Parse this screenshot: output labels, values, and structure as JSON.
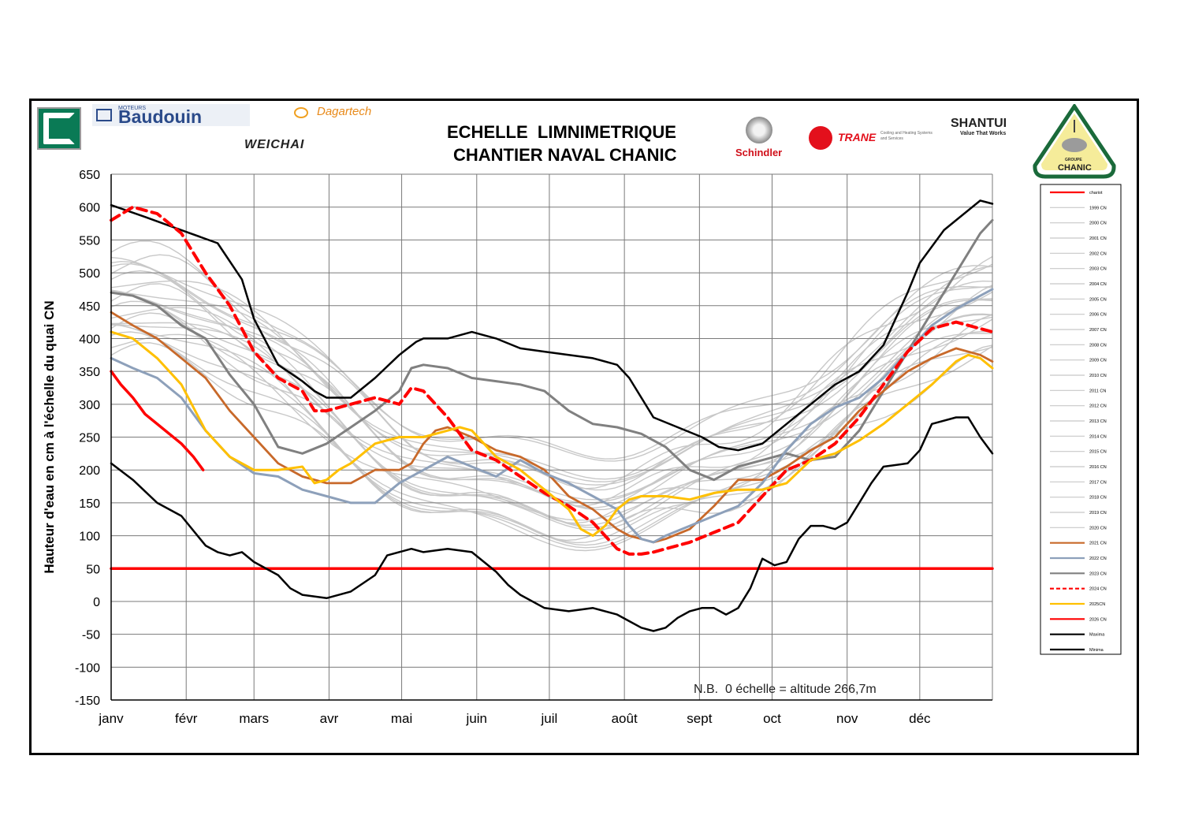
{
  "header": {
    "title_line1": "ECHELLE  LIMNIMETRIQUE",
    "title_line2": "CHANTIER NAVAL CHANIC",
    "note": "N.B.  0 échelle = altitude 266,7m"
  },
  "logos": {
    "baudouin": "Baudouin",
    "baudouin_small": "MOTEURS",
    "dagartech": "Dagartech",
    "weichai": "WEICHAI",
    "schindler": "Schindler",
    "trane": "TRANE",
    "trane_tag": "Cooling and Heating Systems and Services",
    "shantui": "SHANTUI",
    "shantui_tag": "Value That Works",
    "chanic_top": "GROUPE",
    "chanic": "CHANIC"
  },
  "colors": {
    "background_gray": "#c8c8c8",
    "red": "#ff0000",
    "orange": "#c8692a",
    "blue_gray": "#8da0ba",
    "dark_gray": "#808080",
    "yellow": "#ffc000",
    "black": "#000000"
  },
  "chart_data": {
    "type": "line",
    "title": "",
    "xlabel": "",
    "ylabel": "Hauteur d'eau en cm à l'échelle du quai CN",
    "ylim": [
      -150,
      650
    ],
    "yticks": [
      -150,
      -100,
      -50,
      0,
      50,
      100,
      150,
      200,
      250,
      300,
      350,
      400,
      450,
      500,
      550,
      600,
      650
    ],
    "month_labels": [
      "janv",
      "févr",
      "mars",
      "avr",
      "mai",
      "juin",
      "juil",
      "août",
      "sept",
      "oct",
      "nov",
      "déc"
    ],
    "xlim_days": [
      1,
      365
    ],
    "grid": true,
    "legend_position": "right",
    "legend": [
      "chariot",
      "1999 CN",
      "2000 CN",
      "2001 CN",
      "2002 CN",
      "2003 CN",
      "2004 CN",
      "2005 CN",
      "2006 CN",
      "2007 CN",
      "2008 CN",
      "2009 CN",
      "2010 CN",
      "2011 CN",
      "2012 CN",
      "2013 CN",
      "2014 CN",
      "2015 CN",
      "2016 CN",
      "2017 CN",
      "2018 CN",
      "2019 CN",
      "2020 CN",
      "2021 CN",
      "2022 CN",
      "2023 CN",
      "2024 CN",
      "2025CN",
      "2026 CN",
      "Maxima",
      "Minima"
    ],
    "series": [
      {
        "name": "chariot",
        "style": "red",
        "x": [
          1,
          365
        ],
        "y": [
          50,
          50
        ]
      },
      {
        "name": "Maxima",
        "style": "black",
        "x": [
          1,
          15,
          30,
          45,
          55,
          60,
          70,
          80,
          85,
          90,
          100,
          110,
          120,
          127,
          130,
          140,
          150,
          160,
          170,
          180,
          190,
          200,
          210,
          215,
          225,
          235,
          245,
          252,
          260,
          270,
          280,
          290,
          300,
          310,
          320,
          330,
          335,
          345,
          350,
          360,
          365
        ],
        "y": [
          603,
          585,
          565,
          545,
          490,
          430,
          360,
          335,
          320,
          310,
          310,
          340,
          375,
          395,
          400,
          400,
          410,
          400,
          385,
          380,
          375,
          370,
          360,
          340,
          280,
          265,
          250,
          235,
          230,
          240,
          270,
          300,
          330,
          350,
          390,
          470,
          515,
          565,
          580,
          610,
          605
        ]
      },
      {
        "name": "Minima",
        "style": "black",
        "x": [
          1,
          10,
          20,
          30,
          40,
          45,
          50,
          55,
          60,
          70,
          75,
          80,
          90,
          100,
          110,
          115,
          125,
          130,
          140,
          150,
          155,
          160,
          165,
          170,
          180,
          190,
          200,
          210,
          215,
          220,
          225,
          230,
          235,
          240,
          245,
          250,
          255,
          260,
          265,
          270,
          275,
          280,
          285,
          290,
          295,
          300,
          305,
          310,
          315,
          320,
          330,
          335,
          340,
          350,
          355,
          360,
          365
        ],
        "y": [
          210,
          185,
          150,
          130,
          85,
          75,
          70,
          75,
          60,
          40,
          20,
          10,
          5,
          15,
          40,
          70,
          80,
          75,
          80,
          75,
          60,
          45,
          25,
          10,
          -10,
          -15,
          -10,
          -20,
          -30,
          -40,
          -45,
          -40,
          -25,
          -15,
          -10,
          -10,
          -20,
          -10,
          20,
          65,
          55,
          60,
          95,
          115,
          115,
          110,
          120,
          150,
          180,
          205,
          210,
          230,
          270,
          280,
          280,
          250,
          225
        ]
      },
      {
        "name": "2023 CN",
        "style": "dark_gray",
        "x": [
          1,
          10,
          20,
          30,
          40,
          50,
          60,
          70,
          80,
          90,
          100,
          110,
          120,
          125,
          130,
          140,
          150,
          160,
          170,
          180,
          190,
          200,
          210,
          220,
          230,
          240,
          250,
          260,
          270,
          280,
          290,
          300,
          310,
          320,
          330,
          340,
          350,
          360,
          365
        ],
        "y": [
          470,
          465,
          450,
          420,
          400,
          345,
          300,
          235,
          225,
          240,
          265,
          290,
          320,
          355,
          360,
          355,
          340,
          335,
          330,
          320,
          290,
          270,
          265,
          255,
          235,
          200,
          185,
          205,
          215,
          225,
          215,
          220,
          260,
          320,
          380,
          440,
          500,
          560,
          580
        ]
      },
      {
        "name": "2021 CN",
        "style": "orange",
        "x": [
          1,
          10,
          20,
          30,
          40,
          50,
          60,
          70,
          80,
          90,
          100,
          110,
          120,
          125,
          130,
          135,
          140,
          150,
          160,
          170,
          180,
          190,
          200,
          210,
          215,
          220,
          225,
          230,
          240,
          250,
          260,
          270,
          280,
          290,
          300,
          310,
          320,
          330,
          340,
          350,
          360,
          365
        ],
        "y": [
          440,
          420,
          400,
          370,
          340,
          290,
          250,
          210,
          190,
          180,
          180,
          200,
          200,
          210,
          240,
          260,
          265,
          250,
          230,
          220,
          200,
          160,
          140,
          110,
          100,
          95,
          90,
          95,
          110,
          145,
          185,
          185,
          205,
          230,
          250,
          290,
          320,
          350,
          370,
          385,
          375,
          365
        ]
      },
      {
        "name": "2022 CN",
        "style": "blue_gray",
        "x": [
          1,
          10,
          20,
          30,
          40,
          50,
          60,
          70,
          80,
          90,
          100,
          110,
          120,
          130,
          140,
          150,
          160,
          170,
          180,
          190,
          200,
          210,
          215,
          220,
          225,
          230,
          240,
          250,
          260,
          270,
          280,
          290,
          300,
          310,
          320,
          330,
          340,
          350,
          360,
          365
        ],
        "y": [
          370,
          355,
          340,
          310,
          260,
          220,
          195,
          190,
          170,
          160,
          150,
          150,
          180,
          200,
          220,
          205,
          190,
          215,
          195,
          180,
          160,
          140,
          115,
          95,
          90,
          100,
          115,
          130,
          145,
          180,
          230,
          270,
          295,
          310,
          340,
          380,
          420,
          445,
          465,
          475
        ]
      },
      {
        "name": "2024 CN",
        "style": "red_dashed",
        "x": [
          1,
          10,
          20,
          30,
          40,
          50,
          60,
          70,
          80,
          85,
          90,
          100,
          110,
          115,
          120,
          125,
          130,
          140,
          150,
          160,
          170,
          180,
          190,
          200,
          205,
          210,
          215,
          220,
          225,
          230,
          240,
          250,
          260,
          270,
          280,
          290,
          300,
          310,
          320,
          330,
          340,
          350,
          360,
          365
        ],
        "y": [
          580,
          600,
          590,
          560,
          500,
          450,
          380,
          340,
          320,
          290,
          290,
          300,
          310,
          305,
          300,
          325,
          320,
          280,
          230,
          215,
          190,
          165,
          145,
          120,
          100,
          80,
          72,
          72,
          75,
          80,
          90,
          105,
          120,
          160,
          200,
          215,
          240,
          280,
          330,
          380,
          415,
          425,
          415,
          410
        ]
      },
      {
        "name": "2025CN",
        "style": "yellow",
        "x": [
          1,
          10,
          20,
          30,
          40,
          50,
          60,
          70,
          80,
          85,
          90,
          95,
          100,
          110,
          120,
          130,
          140,
          145,
          150,
          160,
          170,
          180,
          190,
          195,
          200,
          205,
          210,
          215,
          220,
          230,
          240,
          250,
          260,
          270,
          280,
          290,
          300,
          310,
          320,
          330,
          340,
          350,
          355,
          360,
          365
        ],
        "y": [
          410,
          400,
          370,
          330,
          260,
          220,
          200,
          200,
          205,
          180,
          185,
          200,
          210,
          240,
          250,
          250,
          260,
          265,
          260,
          220,
          200,
          170,
          140,
          110,
          100,
          115,
          140,
          155,
          160,
          160,
          155,
          165,
          170,
          170,
          180,
          215,
          225,
          245,
          270,
          300,
          330,
          365,
          375,
          370,
          355
        ]
      },
      {
        "name": "2026 CN",
        "style": "red",
        "x": [
          1,
          5,
          10,
          15,
          20,
          25,
          30,
          35,
          39
        ],
        "y": [
          350,
          330,
          310,
          285,
          270,
          255,
          240,
          220,
          200
        ]
      }
    ]
  }
}
